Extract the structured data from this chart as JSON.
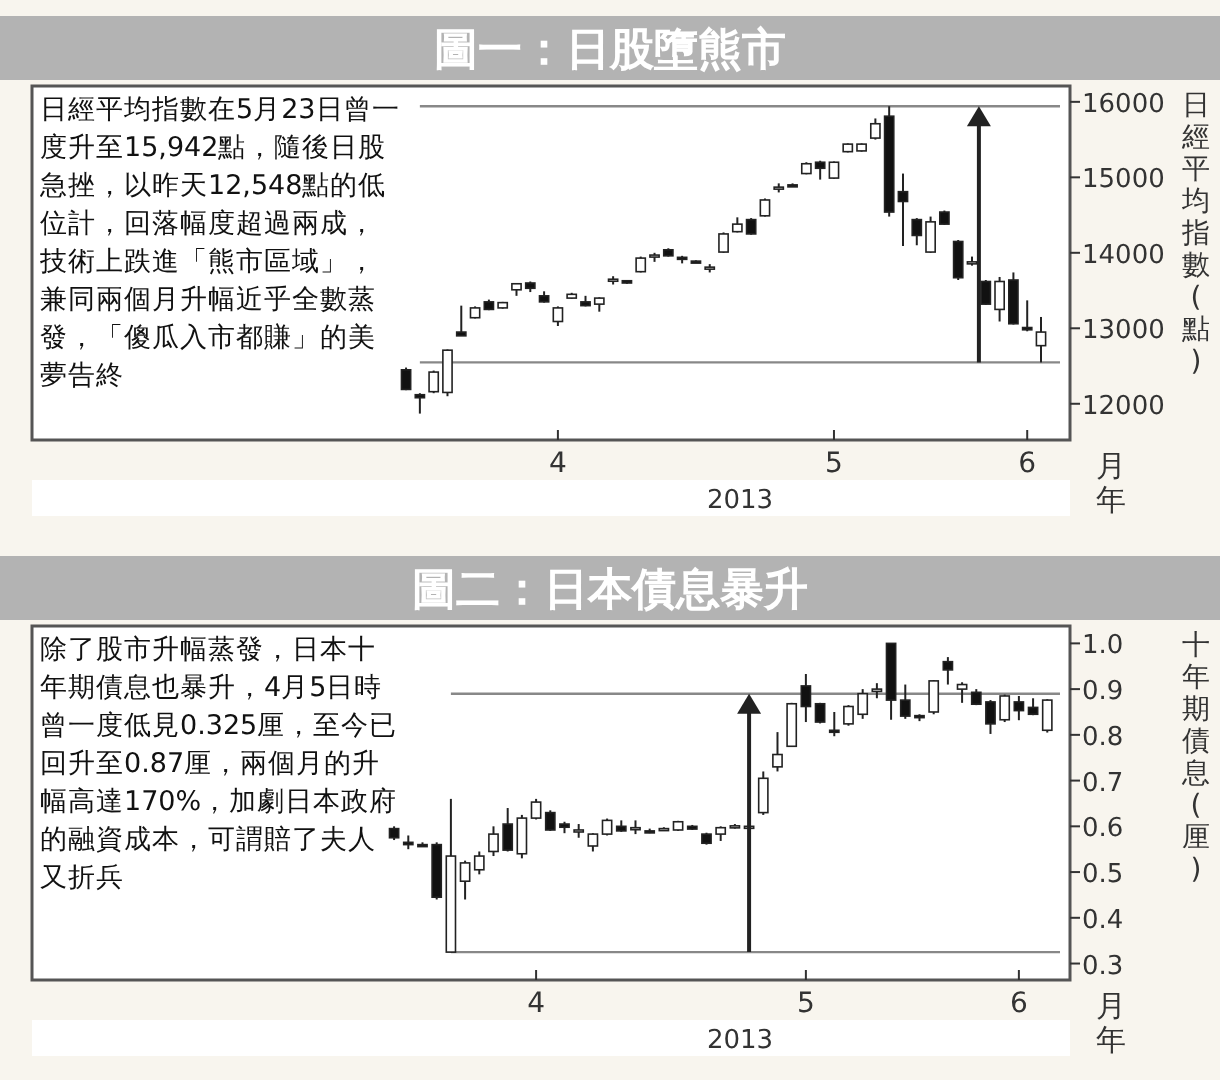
{
  "chart_data": [
    {
      "type": "candlestick",
      "title": "圖一：日股墮熊市",
      "ylabel": "日經平均指數(點)",
      "xlabel": "2013",
      "annotations": [
        "日經平均指數在5月23日曾一度升至15,942點，隨後日股急挫，以昨天12,548點的低位計，回落幅度超過兩成，技術上跌進「熊市區域」，兼同兩個月升幅近乎全數蒸發，「傻瓜入市都賺」的美夢告終",
        "月",
        "年"
      ],
      "categories": [
        null,
        null,
        null,
        null,
        null,
        null,
        null,
        null,
        null,
        null,
        null,
        "4",
        null,
        null,
        null,
        null,
        null,
        null,
        null,
        null,
        null,
        null,
        null,
        null,
        null,
        null,
        null,
        null,
        null,
        null,
        null,
        "5",
        null,
        null,
        null,
        null,
        null,
        null,
        null,
        null,
        null,
        null,
        null,
        null,
        null,
        "6",
        null
      ],
      "ylim": [
        11520,
        16210
      ],
      "yticks": [
        12000,
        13000,
        14000,
        15000,
        16000
      ],
      "ref_lines": [
        {
          "axis": "y",
          "value": 15942,
          "color": "#888888"
        },
        {
          "axis": "y",
          "value": 12548,
          "color": "#888888"
        }
      ],
      "ohlc": [
        [
          12450,
          12480,
          12180,
          12190
        ],
        [
          12120,
          12140,
          11870,
          12080
        ],
        [
          12160,
          12440,
          12140,
          12420
        ],
        [
          12150,
          12720,
          12100,
          12710
        ],
        [
          12950,
          13300,
          12900,
          12900
        ],
        [
          13140,
          13290,
          13130,
          13270
        ],
        [
          13350,
          13380,
          13240,
          13250
        ],
        [
          13270,
          13350,
          13260,
          13340
        ],
        [
          13510,
          13600,
          13430,
          13590
        ],
        [
          13600,
          13620,
          13480,
          13530
        ],
        [
          13430,
          13490,
          13340,
          13350
        ],
        [
          13090,
          13290,
          13030,
          13270
        ],
        [
          13400,
          13470,
          13390,
          13450
        ],
        [
          13350,
          13430,
          13290,
          13300
        ],
        [
          13320,
          13410,
          13220,
          13400
        ],
        [
          13640,
          13690,
          13580,
          13650
        ],
        [
          13630,
          13640,
          13590,
          13600
        ],
        [
          13750,
          13950,
          13740,
          13930
        ],
        [
          13950,
          14000,
          13880,
          13970
        ],
        [
          14040,
          14060,
          13950,
          13960
        ],
        [
          13940,
          13960,
          13860,
          13930
        ],
        [
          13890,
          13900,
          13870,
          13870
        ],
        [
          13800,
          13850,
          13740,
          13810
        ],
        [
          14010,
          14270,
          14000,
          14250
        ],
        [
          14280,
          14470,
          14270,
          14380
        ],
        [
          14440,
          14460,
          14240,
          14250
        ],
        [
          14490,
          14720,
          14480,
          14700
        ],
        [
          14850,
          14920,
          14800,
          14870
        ],
        [
          14900,
          14920,
          14880,
          14880
        ],
        [
          15050,
          15200,
          15040,
          15180
        ],
        [
          15200,
          15220,
          14970,
          15120
        ],
        [
          14990,
          15210,
          14980,
          15200
        ],
        [
          15340,
          15450,
          15330,
          15440
        ],
        [
          15350,
          15450,
          15340,
          15440
        ],
        [
          15520,
          15780,
          15500,
          15710
        ],
        [
          15810,
          15942,
          14480,
          14540
        ],
        [
          14810,
          15050,
          14090,
          14680
        ],
        [
          14440,
          14460,
          14100,
          14230
        ],
        [
          14010,
          14480,
          14000,
          14410
        ],
        [
          14540,
          14560,
          14370,
          14380
        ],
        [
          14150,
          14170,
          13640,
          13670
        ],
        [
          13860,
          13950,
          13830,
          13880
        ],
        [
          13620,
          13640,
          13310,
          13320
        ],
        [
          13250,
          13680,
          13090,
          13620
        ],
        [
          13640,
          13740,
          13050,
          13060
        ],
        [
          13010,
          13370,
          12960,
          12980
        ],
        [
          12770,
          13150,
          12548,
          12950
        ]
      ]
    },
    {
      "type": "candlestick",
      "title": "圖二：日本債息暴升",
      "ylabel": "十年期債息(厘)",
      "xlabel": "2013",
      "annotations": [
        "除了股市升幅蒸發，日本十年期債息也暴升，4月5日時曾一度低見0.325厘，至今已回升至0.87厘，兩個月的升幅高達170%，加劇日本政府的融資成本，可謂賠了夫人又折兵",
        "月",
        "年"
      ],
      "categories": [
        null,
        null,
        null,
        null,
        null,
        null,
        null,
        null,
        null,
        null,
        "4",
        null,
        null,
        null,
        null,
        null,
        null,
        null,
        null,
        null,
        null,
        null,
        null,
        null,
        null,
        null,
        null,
        null,
        null,
        "5",
        null,
        null,
        null,
        null,
        null,
        null,
        null,
        null,
        null,
        null,
        null,
        null,
        null,
        null,
        "6",
        null,
        null
      ],
      "ylim": [
        0.264,
        1.038
      ],
      "yticks": [
        0.3,
        0.4,
        0.5,
        0.6,
        0.7,
        0.8,
        0.9,
        {
          "value": 1,
          "label": "1.0"
        }
      ],
      "ref_lines": [
        {
          "axis": "y",
          "value": 0.89,
          "color": "#888888"
        },
        {
          "axis": "y",
          "value": 0.325,
          "color": "#888888"
        }
      ],
      "ohlc": [
        [
          0.595,
          0.6,
          0.57,
          0.575
        ],
        [
          0.565,
          0.58,
          0.55,
          0.56
        ],
        [
          0.56,
          0.565,
          0.555,
          0.558
        ],
        [
          0.56,
          0.565,
          0.44,
          0.445
        ],
        [
          0.325,
          0.66,
          0.325,
          0.535
        ],
        [
          0.48,
          0.525,
          0.44,
          0.52
        ],
        [
          0.505,
          0.545,
          0.495,
          0.535
        ],
        [
          0.545,
          0.6,
          0.535,
          0.583
        ],
        [
          0.605,
          0.64,
          0.545,
          0.548
        ],
        [
          0.54,
          0.625,
          0.53,
          0.618
        ],
        [
          0.618,
          0.66,
          0.615,
          0.653
        ],
        [
          0.63,
          0.635,
          0.59,
          0.592
        ],
        [
          0.605,
          0.61,
          0.585,
          0.598
        ],
        [
          0.59,
          0.605,
          0.575,
          0.592
        ],
        [
          0.557,
          0.585,
          0.545,
          0.583
        ],
        [
          0.583,
          0.617,
          0.58,
          0.613
        ],
        [
          0.6,
          0.613,
          0.588,
          0.59
        ],
        [
          0.595,
          0.613,
          0.583,
          0.597
        ],
        [
          0.59,
          0.595,
          0.585,
          0.587
        ],
        [
          0.593,
          0.598,
          0.59,
          0.595
        ],
        [
          0.592,
          0.612,
          0.59,
          0.61
        ],
        [
          0.6,
          0.603,
          0.592,
          0.594
        ],
        [
          0.583,
          0.586,
          0.56,
          0.563
        ],
        [
          0.583,
          0.6,
          0.568,
          0.597
        ],
        [
          0.598,
          0.605,
          0.595,
          0.601
        ],
        [
          0.598,
          0.603,
          0.596,
          0.6
        ],
        [
          0.63,
          0.72,
          0.625,
          0.705
        ],
        [
          0.73,
          0.806,
          0.72,
          0.757
        ],
        [
          0.775,
          0.87,
          0.775,
          0.868
        ],
        [
          0.907,
          0.933,
          0.828,
          0.862
        ],
        [
          0.868,
          0.87,
          0.825,
          0.828
        ],
        [
          0.81,
          0.85,
          0.797,
          0.806
        ],
        [
          0.824,
          0.865,
          0.82,
          0.862
        ],
        [
          0.845,
          0.9,
          0.835,
          0.89
        ],
        [
          0.895,
          0.913,
          0.88,
          0.9
        ],
        [
          1.0,
          1.0,
          0.833,
          0.876
        ],
        [
          0.876,
          0.91,
          0.835,
          0.841
        ],
        [
          0.842,
          0.845,
          0.83,
          0.838
        ],
        [
          0.85,
          0.92,
          0.845,
          0.918
        ],
        [
          0.96,
          0.97,
          0.91,
          0.942
        ],
        [
          0.9,
          0.915,
          0.87,
          0.91
        ],
        [
          0.893,
          0.9,
          0.865,
          0.867
        ],
        [
          0.872,
          0.876,
          0.802,
          0.824
        ],
        [
          0.833,
          0.888,
          0.828,
          0.885
        ],
        [
          0.872,
          0.885,
          0.832,
          0.853
        ],
        [
          0.86,
          0.88,
          0.843,
          0.845
        ],
        [
          0.81,
          0.878,
          0.805,
          0.876
        ]
      ]
    }
  ]
}
